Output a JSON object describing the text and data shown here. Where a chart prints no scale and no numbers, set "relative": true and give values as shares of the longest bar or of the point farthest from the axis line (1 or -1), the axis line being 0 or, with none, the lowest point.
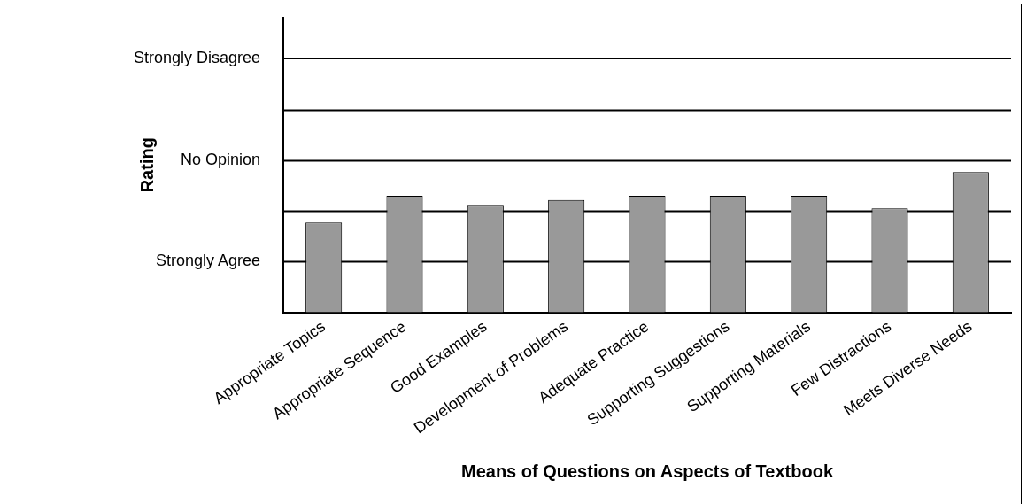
{
  "chart_data": {
    "type": "bar",
    "xlabel": "Means of Questions on Aspects of Textbook",
    "ylabel": "Rating",
    "categories": [
      "Appropriate Topics",
      "Appropriate Sequence",
      "Good Examples",
      "Development of Problems",
      "Adequate Practice",
      "Supporting Suggestions",
      "Supporting Materials",
      "Few Distractions",
      "Meets Diverse Needs"
    ],
    "values": [
      0.64,
      0.83,
      0.76,
      0.8,
      0.83,
      0.83,
      0.83,
      0.74,
      1
    ],
    "relative": true,
    "color": "#999999",
    "ref_lines": [
      {
        "axis": "y",
        "value": 0.36,
        "label": "Strongly Agree"
      },
      {
        "axis": "y",
        "value": 0.72,
        "label": null
      },
      {
        "axis": "y",
        "value": 1.08,
        "label": "No Opinion"
      },
      {
        "axis": "y",
        "value": 1.44,
        "label": null
      },
      {
        "axis": "y",
        "value": 1.81,
        "label": "Strongly Disagree"
      }
    ],
    "legend": false
  }
}
